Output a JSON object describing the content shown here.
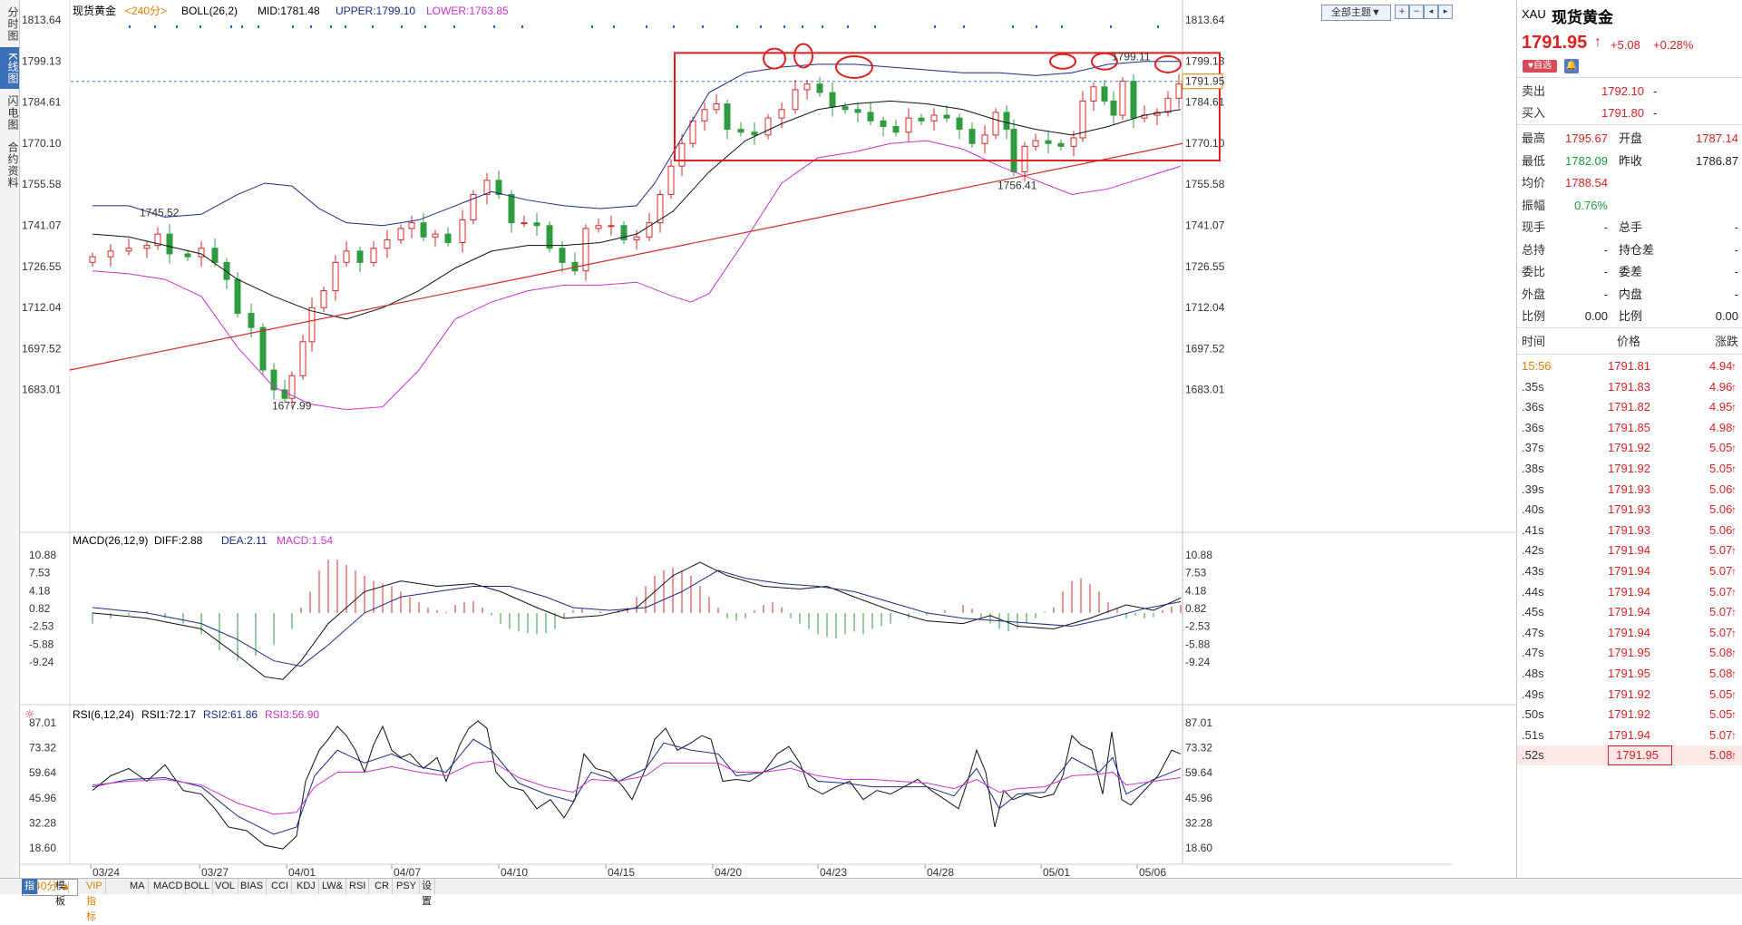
{
  "left_tabs": [
    "分时图",
    "K线图",
    "闪电图",
    "合约资料"
  ],
  "chart": {
    "header": {
      "symbol": "现货黄金",
      "period": "<240分>",
      "boll": "BOLL(26,2)",
      "mid": "MID:1781.48",
      "upper": "UPPER:1799.10",
      "lower": "LOWER:1763.85"
    },
    "theme_button": "全部主题▼",
    "price_ticks": [
      "1813.64",
      "1799.13",
      "1784.61",
      "1770.10",
      "1755.58",
      "1741.07",
      "1726.55",
      "1712.04",
      "1697.52",
      "1683.01"
    ],
    "annotations": {
      "high_left": "1745.52",
      "low": "1677.99",
      "low2": "1756.41",
      "high_right": "1799.11",
      "last_price_tag": "1791.95"
    },
    "macd_header": {
      "name": "MACD(26,12,9)",
      "diff": "DIFF:2.88",
      "dea": "DEA:2.11",
      "macd": "MACD:1.54"
    },
    "macd_ticks": [
      "10.88",
      "7.53",
      "4.18",
      "0.82",
      "-2.53",
      "-5.88",
      "-9.24"
    ],
    "rsi_header": {
      "name": "RSI(6,12,24)",
      "rsi1": "RSI1:72.17",
      "rsi2": "RSI2:61.86",
      "rsi3": "RSI3:56.90"
    },
    "rsi_ticks": [
      "87.01",
      "73.32",
      "59.64",
      "45.96",
      "32.28",
      "18.60"
    ],
    "dates": [
      "03/24",
      "03/27",
      "04/01",
      "04/07",
      "04/10",
      "04/15",
      "04/20",
      "04/23",
      "04/28",
      "05/01",
      "05/06"
    ],
    "colors": {
      "up": "#d42a2a",
      "down": "#2f9b3f",
      "boll_mid": "#111111",
      "boll_upper": "#1c2a8a",
      "boll_lower": "#cc33cc",
      "trend": "#d42a2a",
      "box": "#e02020",
      "dotted": "#3a7fd5"
    }
  },
  "bottom_bar": {
    "period_label": "240分 ▲",
    "tabs": [
      "指标",
      "模板",
      "VIP指标",
      "MA",
      "MACD",
      "BOLL",
      "VOL",
      "BIAS",
      "CCI",
      "KDJ",
      "LW&",
      "RSI",
      "CR",
      "PSY",
      "设置"
    ]
  },
  "quote": {
    "code": "XAU",
    "name": "现货黄金",
    "price": "1791.95",
    "arrow": "↑",
    "change": "+5.08",
    "change_pct": "+0.28%",
    "watch_btn": "自选",
    "sell_label": "卖出",
    "sell_price": "1792.10",
    "sell_vol": "-",
    "buy_label": "买入",
    "buy_price": "1791.80",
    "buy_vol": "-",
    "stats": [
      {
        "l1": "最高",
        "v1": "1795.67",
        "l2": "开盘",
        "v2": "1787.14"
      },
      {
        "l1": "最低",
        "v1": "1782.09",
        "l2": "昨收",
        "v2": "1786.87"
      },
      {
        "l1": "均价",
        "v1": "1788.54",
        "l2": "",
        "v2": ""
      },
      {
        "l1": "振幅",
        "v1": "0.76%",
        "l2": "",
        "v2": ""
      },
      {
        "l1": "现手",
        "v1": "-",
        "l2": "总手",
        "v2": "-"
      },
      {
        "l1": "总持",
        "v1": "-",
        "l2": "持仓差",
        "v2": "-"
      },
      {
        "l1": "委比",
        "v1": "-",
        "l2": "委差",
        "v2": "-"
      },
      {
        "l1": "外盘",
        "v1": "-",
        "l2": "内盘",
        "v2": "-"
      },
      {
        "l1": "比例",
        "v1": "0.00",
        "l2": "比例",
        "v2": "0.00"
      }
    ],
    "tick_header": {
      "time": "时间",
      "price": "价格",
      "change": "涨跌"
    },
    "ticks": [
      {
        "t": "15:56",
        "p": "1791.81",
        "c": "4.94"
      },
      {
        "t": ".35s",
        "p": "1791.83",
        "c": "4.96"
      },
      {
        "t": ".36s",
        "p": "1791.82",
        "c": "4.95"
      },
      {
        "t": ".36s",
        "p": "1791.85",
        "c": "4.98"
      },
      {
        "t": ".37s",
        "p": "1791.92",
        "c": "5.05"
      },
      {
        "t": ".38s",
        "p": "1791.92",
        "c": "5.05"
      },
      {
        "t": ".39s",
        "p": "1791.93",
        "c": "5.06"
      },
      {
        "t": ".40s",
        "p": "1791.93",
        "c": "5.06"
      },
      {
        "t": ".41s",
        "p": "1791.93",
        "c": "5.06"
      },
      {
        "t": ".42s",
        "p": "1791.94",
        "c": "5.07"
      },
      {
        "t": ".43s",
        "p": "1791.94",
        "c": "5.07"
      },
      {
        "t": ".44s",
        "p": "1791.94",
        "c": "5.07"
      },
      {
        "t": ".45s",
        "p": "1791.94",
        "c": "5.07"
      },
      {
        "t": ".47s",
        "p": "1791.94",
        "c": "5.07"
      },
      {
        "t": ".47s",
        "p": "1791.95",
        "c": "5.08"
      },
      {
        "t": ".48s",
        "p": "1791.95",
        "c": "5.08"
      },
      {
        "t": ".49s",
        "p": "1791.92",
        "c": "5.05"
      },
      {
        "t": ".50s",
        "p": "1791.92",
        "c": "5.05"
      },
      {
        "t": ".51s",
        "p": "1791.94",
        "c": "5.07"
      },
      {
        "t": ".52s",
        "p": "1791.95",
        "c": "5.08"
      }
    ]
  }
}
